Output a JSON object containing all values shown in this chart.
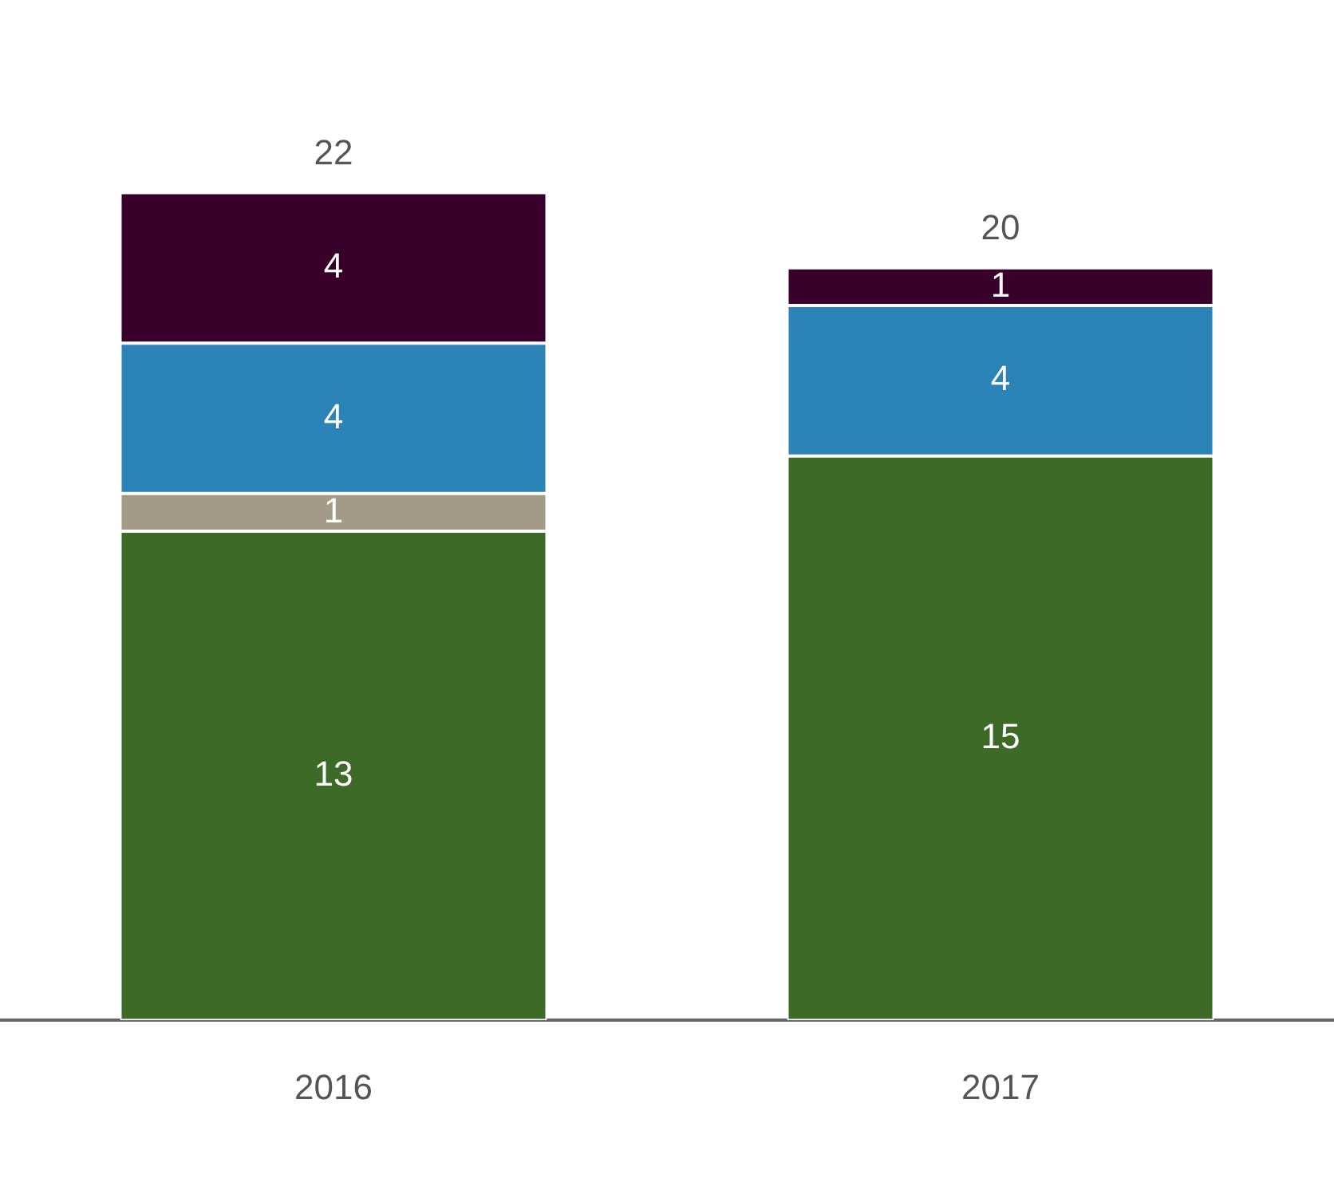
{
  "chart_data": {
    "type": "bar",
    "stacked": true,
    "categories": [
      "2016",
      "2017"
    ],
    "series": [
      {
        "color": "#3d6b27",
        "values": [
          13,
          15
        ]
      },
      {
        "color": "#a39a87",
        "values": [
          1,
          null
        ]
      },
      {
        "color": "#2b83b8",
        "values": [
          4,
          4
        ]
      },
      {
        "color": "#39002b",
        "values": [
          4,
          1
        ]
      }
    ],
    "data_labels": true,
    "totals": [
      "22",
      "20"
    ],
    "grid": false,
    "legend": false
  }
}
